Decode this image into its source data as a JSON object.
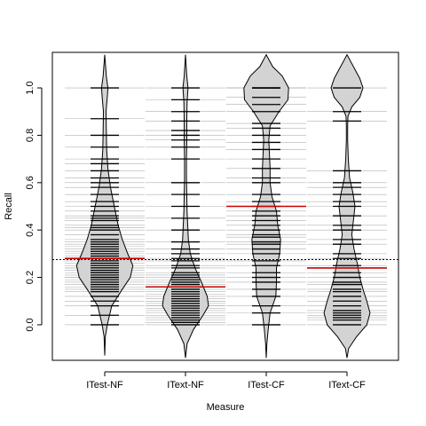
{
  "chart_data": {
    "type": "beanplot",
    "xlabel": "Measure",
    "ylabel": "Recall",
    "categories": [
      "ITest-NF",
      "IText-NF",
      "ITest-CF",
      "IText-CF"
    ],
    "ylim": [
      -0.15,
      1.15
    ],
    "y_ticks": [
      0.0,
      0.2,
      0.4,
      0.6,
      0.8,
      1.0
    ],
    "y_tick_labels": [
      "0.0",
      "0.2",
      "0.4",
      "0.6",
      "0.8",
      "1.0"
    ],
    "overall_mean": 0.275,
    "group_means": [
      0.28,
      0.16,
      0.5,
      0.24
    ],
    "bean_range": [
      [
        -0.13,
        1.14
      ],
      [
        -0.14,
        1.14
      ],
      [
        -0.14,
        1.14
      ],
      [
        -0.14,
        1.14
      ]
    ],
    "density_profiles": [
      [
        [
          -0.13,
          0
        ],
        [
          -0.05,
          0.02
        ],
        [
          0.0,
          0.08
        ],
        [
          0.08,
          0.22
        ],
        [
          0.15,
          0.55
        ],
        [
          0.2,
          0.8
        ],
        [
          0.25,
          0.88
        ],
        [
          0.3,
          0.72
        ],
        [
          0.36,
          0.55
        ],
        [
          0.42,
          0.42
        ],
        [
          0.5,
          0.3
        ],
        [
          0.58,
          0.18
        ],
        [
          0.66,
          0.1
        ],
        [
          0.74,
          0.06
        ],
        [
          0.82,
          0.05
        ],
        [
          0.9,
          0.04
        ],
        [
          0.96,
          0.08
        ],
        [
          1.0,
          0.1
        ],
        [
          1.05,
          0.05
        ],
        [
          1.14,
          0
        ]
      ],
      [
        [
          -0.14,
          0
        ],
        [
          -0.08,
          0.05
        ],
        [
          -0.02,
          0.25
        ],
        [
          0.04,
          0.55
        ],
        [
          0.08,
          0.72
        ],
        [
          0.12,
          0.68
        ],
        [
          0.18,
          0.5
        ],
        [
          0.24,
          0.3
        ],
        [
          0.3,
          0.15
        ],
        [
          0.36,
          0.09
        ],
        [
          0.42,
          0.07
        ],
        [
          0.48,
          0.05
        ],
        [
          0.55,
          0.04
        ],
        [
          0.62,
          0.03
        ],
        [
          0.7,
          0.03
        ],
        [
          0.78,
          0.04
        ],
        [
          0.86,
          0.04
        ],
        [
          0.94,
          0.05
        ],
        [
          1.0,
          0.08
        ],
        [
          1.05,
          0.04
        ],
        [
          1.14,
          0
        ]
      ],
      [
        [
          -0.14,
          0
        ],
        [
          -0.08,
          0.02
        ],
        [
          -0.02,
          0.06
        ],
        [
          0.05,
          0.12
        ],
        [
          0.12,
          0.3
        ],
        [
          0.18,
          0.32
        ],
        [
          0.24,
          0.32
        ],
        [
          0.3,
          0.42
        ],
        [
          0.36,
          0.45
        ],
        [
          0.42,
          0.36
        ],
        [
          0.48,
          0.32
        ],
        [
          0.54,
          0.18
        ],
        [
          0.6,
          0.12
        ],
        [
          0.66,
          0.12
        ],
        [
          0.72,
          0.1
        ],
        [
          0.78,
          0.08
        ],
        [
          0.84,
          0.12
        ],
        [
          0.9,
          0.4
        ],
        [
          0.95,
          0.68
        ],
        [
          1.0,
          0.7
        ],
        [
          1.05,
          0.5
        ],
        [
          1.09,
          0.2
        ],
        [
          1.14,
          0
        ]
      ],
      [
        [
          -0.14,
          0
        ],
        [
          -0.1,
          0.05
        ],
        [
          -0.05,
          0.3
        ],
        [
          0.0,
          0.62
        ],
        [
          0.05,
          0.72
        ],
        [
          0.1,
          0.62
        ],
        [
          0.15,
          0.5
        ],
        [
          0.2,
          0.4
        ],
        [
          0.26,
          0.32
        ],
        [
          0.32,
          0.22
        ],
        [
          0.38,
          0.15
        ],
        [
          0.44,
          0.2
        ],
        [
          0.5,
          0.25
        ],
        [
          0.56,
          0.18
        ],
        [
          0.62,
          0.08
        ],
        [
          0.7,
          0.04
        ],
        [
          0.78,
          0.02
        ],
        [
          0.84,
          0.02
        ],
        [
          0.88,
          0.03
        ],
        [
          0.92,
          0.15
        ],
        [
          0.96,
          0.4
        ],
        [
          1.0,
          0.5
        ],
        [
          1.04,
          0.4
        ],
        [
          1.09,
          0.2
        ],
        [
          1.14,
          0
        ]
      ]
    ],
    "observations": [
      [
        0.04,
        0.08,
        0.1,
        0.12,
        0.14,
        0.15,
        0.16,
        0.17,
        0.18,
        0.19,
        0.2,
        0.2,
        0.21,
        0.22,
        0.22,
        0.23,
        0.24,
        0.24,
        0.25,
        0.26,
        0.27,
        0.28,
        0.29,
        0.3,
        0.31,
        0.32,
        0.33,
        0.34,
        0.35,
        0.36,
        0.38,
        0.4,
        0.41,
        0.42,
        0.44,
        0.45,
        0.48,
        0.5,
        0.52,
        0.55,
        0.58,
        0.6,
        0.62,
        0.65,
        0.68,
        0.7,
        0.75,
        0.8,
        0.87,
        1.0,
        0.0,
        0.46
      ],
      [
        0.0,
        0.01,
        0.02,
        0.03,
        0.04,
        0.05,
        0.06,
        0.07,
        0.08,
        0.08,
        0.09,
        0.1,
        0.1,
        0.11,
        0.12,
        0.13,
        0.14,
        0.15,
        0.16,
        0.17,
        0.18,
        0.19,
        0.2,
        0.21,
        0.22,
        0.24,
        0.25,
        0.27,
        0.28,
        0.3,
        0.32,
        0.35,
        0.4,
        0.45,
        0.5,
        0.55,
        0.6,
        0.7,
        0.75,
        0.78,
        0.8,
        0.82,
        0.86,
        0.9,
        0.95,
        1.0
      ],
      [
        0.0,
        0.05,
        0.08,
        0.12,
        0.15,
        0.18,
        0.2,
        0.22,
        0.25,
        0.27,
        0.3,
        0.32,
        0.34,
        0.35,
        0.37,
        0.38,
        0.4,
        0.42,
        0.44,
        0.46,
        0.48,
        0.5,
        0.52,
        0.55,
        0.6,
        0.62,
        0.66,
        0.7,
        0.74,
        0.77,
        0.8,
        0.83,
        0.85,
        0.9,
        0.93,
        0.96,
        1.0,
        1.0,
        1.0
      ],
      [
        0.0,
        0.02,
        0.03,
        0.04,
        0.05,
        0.06,
        0.08,
        0.1,
        0.12,
        0.14,
        0.15,
        0.17,
        0.18,
        0.2,
        0.22,
        0.25,
        0.28,
        0.3,
        0.34,
        0.36,
        0.4,
        0.42,
        0.46,
        0.5,
        0.52,
        0.55,
        0.58,
        0.6,
        0.65,
        0.86,
        0.9,
        1.0
      ]
    ],
    "colors": {
      "bean_fill": "#d3d3d3",
      "bean_outline": "#000000",
      "bean_line": "#000000",
      "mean_line": "#cc0000",
      "overall_line": "#000000",
      "beanline_bg": "#b0b0b0"
    },
    "grid": false,
    "legend": false
  }
}
